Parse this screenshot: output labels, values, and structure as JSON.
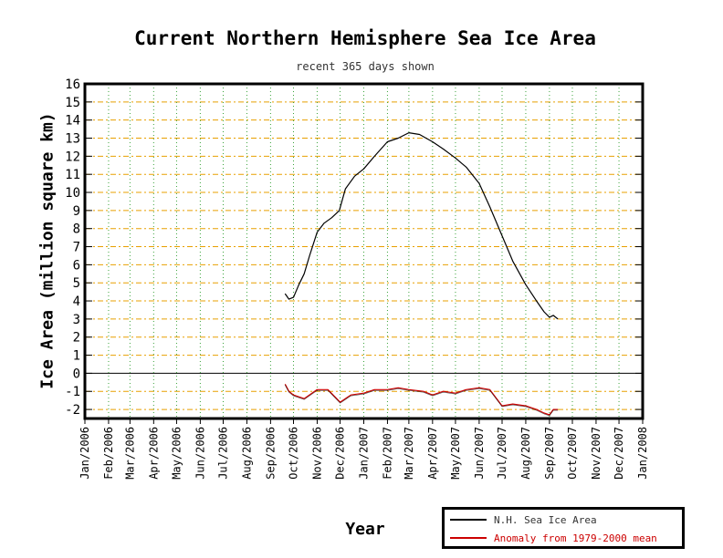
{
  "chart_data": {
    "type": "line",
    "title": "Current Northern Hemisphere Sea Ice Area",
    "subtitle": "recent 365 days shown",
    "xlabel": "Year",
    "ylabel": "Ice Area (million square km)",
    "ylim": [
      -2.5,
      16
    ],
    "y_ticks": [
      16,
      15,
      14,
      13,
      12,
      11,
      10,
      9,
      8,
      7,
      6,
      5,
      4,
      3,
      2,
      1,
      0,
      -1,
      -2
    ],
    "x_ticks": [
      "Jan/2006",
      "Feb/2006",
      "Mar/2006",
      "Apr/2006",
      "May/2006",
      "Jun/2006",
      "Jul/2006",
      "Aug/2006",
      "Sep/2006",
      "Oct/2006",
      "Nov/2006",
      "Dec/2006",
      "Jan/2007",
      "Feb/2007",
      "Mar/2007",
      "Apr/2007",
      "May/2007",
      "Jun/2007",
      "Jul/2007",
      "Aug/2007",
      "Sep/2007",
      "Oct/2007",
      "Nov/2007",
      "Dec/2007",
      "Jan/2008"
    ],
    "xlim": [
      "2006-01-01",
      "2008-01-01"
    ],
    "grid": true,
    "legend_position": "bottom-right",
    "series": [
      {
        "name": "N.H. Sea Ice Area",
        "color": "#000000",
        "points": [
          [
            "2006-09-20",
            4.4
          ],
          [
            "2006-09-25",
            4.1
          ],
          [
            "2006-10-01",
            4.2
          ],
          [
            "2006-10-08",
            4.9
          ],
          [
            "2006-10-15",
            5.5
          ],
          [
            "2006-10-22",
            6.5
          ],
          [
            "2006-11-01",
            7.8
          ],
          [
            "2006-11-10",
            8.3
          ],
          [
            "2006-11-20",
            8.6
          ],
          [
            "2006-11-30",
            9.0
          ],
          [
            "2006-12-08",
            10.2
          ],
          [
            "2006-12-20",
            10.9
          ],
          [
            "2007-01-01",
            11.3
          ],
          [
            "2007-01-15",
            12.0
          ],
          [
            "2007-02-01",
            12.8
          ],
          [
            "2007-02-15",
            13.0
          ],
          [
            "2007-03-01",
            13.3
          ],
          [
            "2007-03-15",
            13.2
          ],
          [
            "2007-04-01",
            12.8
          ],
          [
            "2007-04-15",
            12.4
          ],
          [
            "2007-05-01",
            11.9
          ],
          [
            "2007-05-15",
            11.4
          ],
          [
            "2007-06-01",
            10.5
          ],
          [
            "2007-06-15",
            9.2
          ],
          [
            "2007-07-01",
            7.6
          ],
          [
            "2007-07-15",
            6.2
          ],
          [
            "2007-08-01",
            4.9
          ],
          [
            "2007-08-15",
            4.0
          ],
          [
            "2007-08-25",
            3.4
          ],
          [
            "2007-09-01",
            3.1
          ],
          [
            "2007-09-06",
            3.2
          ],
          [
            "2007-09-12",
            3.0
          ]
        ]
      },
      {
        "name": "Anomaly from 1979-2000 mean",
        "color": "#cc0000",
        "points": [
          [
            "2006-09-20",
            -0.6
          ],
          [
            "2006-09-25",
            -1.0
          ],
          [
            "2006-10-01",
            -1.2
          ],
          [
            "2006-10-15",
            -1.4
          ],
          [
            "2006-11-01",
            -0.9
          ],
          [
            "2006-11-15",
            -0.9
          ],
          [
            "2006-12-01",
            -1.6
          ],
          [
            "2006-12-15",
            -1.2
          ],
          [
            "2007-01-01",
            -1.1
          ],
          [
            "2007-01-15",
            -0.9
          ],
          [
            "2007-02-01",
            -0.9
          ],
          [
            "2007-02-15",
            -0.8
          ],
          [
            "2007-03-01",
            -0.9
          ],
          [
            "2007-03-20",
            -1.0
          ],
          [
            "2007-04-01",
            -1.2
          ],
          [
            "2007-04-15",
            -1.0
          ],
          [
            "2007-05-01",
            -1.1
          ],
          [
            "2007-05-15",
            -0.9
          ],
          [
            "2007-06-01",
            -0.8
          ],
          [
            "2007-06-15",
            -0.9
          ],
          [
            "2007-07-01",
            -1.8
          ],
          [
            "2007-07-15",
            -1.7
          ],
          [
            "2007-08-01",
            -1.8
          ],
          [
            "2007-08-15",
            -2.0
          ],
          [
            "2007-08-25",
            -2.2
          ],
          [
            "2007-09-01",
            -2.3
          ],
          [
            "2007-09-06",
            -2.0
          ],
          [
            "2007-09-12",
            -2.0
          ]
        ]
      }
    ]
  }
}
